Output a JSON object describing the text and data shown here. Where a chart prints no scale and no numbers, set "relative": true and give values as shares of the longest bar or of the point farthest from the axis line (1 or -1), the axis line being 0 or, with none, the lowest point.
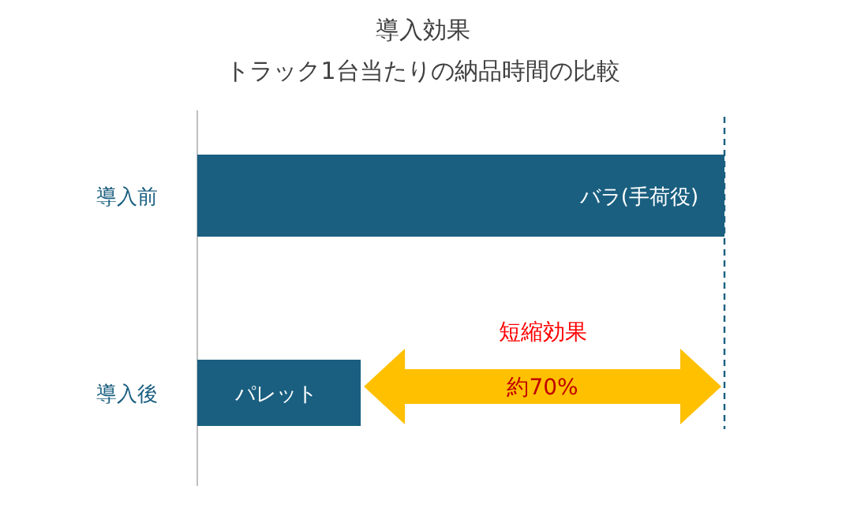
{
  "chart_data": {
    "type": "bar",
    "orientation": "horizontal",
    "relative": true,
    "title": "導入効果",
    "subtitle": "トラック1台当たりの納品時間の比較",
    "categories": [
      "導入前",
      "導入後"
    ],
    "values": [
      1,
      0.31
    ],
    "color": "#1a5f80",
    "ref_lines": [
      {
        "axis": "x",
        "value": 1,
        "line_style": "dashed",
        "color": "#1a5f80"
      }
    ],
    "annotations": [
      "バラ(手荷役)",
      "パレット",
      "短縮効果",
      "約70%"
    ]
  }
}
